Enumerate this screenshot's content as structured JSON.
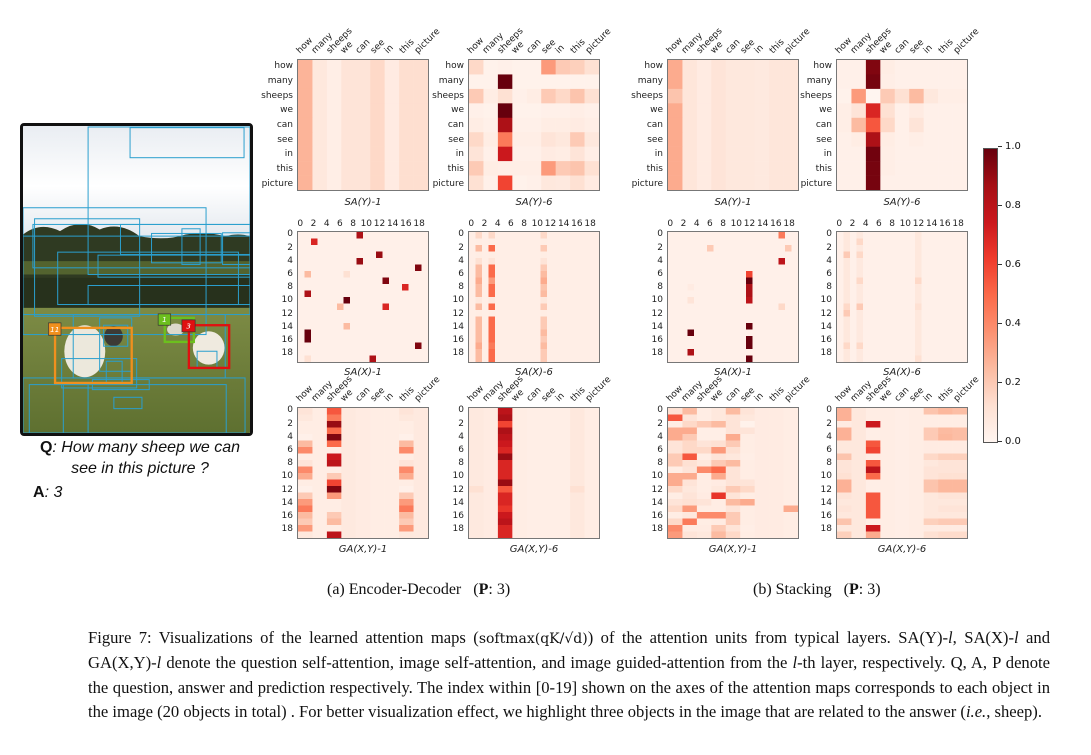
{
  "question": {
    "q_label": "Q",
    "q_line1": ": How many sheep we can",
    "q_line2": "see in this picture ?",
    "a_label": "A",
    "a_text": ": 3"
  },
  "photo": {
    "highlight_labels": [
      "11",
      "1",
      "3"
    ],
    "highlight_colors": [
      "#f0901e",
      "#6cbf1e",
      "#e01010"
    ],
    "box_color": "#2a9fce"
  },
  "axis_words": [
    "how",
    "many",
    "sheeps",
    "we",
    "can",
    "see",
    "in",
    "this",
    "picture"
  ],
  "axis_numbers": [
    "0",
    "2",
    "4",
    "6",
    "8",
    "10",
    "12",
    "14",
    "16",
    "18"
  ],
  "colorbar": {
    "colormap": "Reds",
    "range": [
      0.0,
      1.0
    ],
    "ticks": [
      "1.0",
      "0.8",
      "0.6",
      "0.4",
      "0.2",
      "0.0"
    ]
  },
  "subcaptions": {
    "a": {
      "prefix": "(a) Encoder-Decoder",
      "p_label": "P",
      "p_value": ": 3)"
    },
    "b": {
      "prefix": "(b) Stacking",
      "p_label": "P",
      "p_value": ": 3)"
    }
  },
  "caption": {
    "parts": [
      "Figure 7: Visualizations of the learned attention maps (",
      "softmax(qK/√d)",
      ") of the attention units from typical layers. SA(Y)-",
      "l",
      ", SA(X)-",
      "l",
      " and GA(X,Y)-",
      "l",
      " denote the question self-attention, image self-attention, and image guided-attention from the ",
      "l",
      "-th layer, respectively. Q, A, P denote the question, answer and prediction respectively. The index within [0-19] shown on the axes of the attention maps corresponds to each object in the image (20 objects in total) . For better visualization effect, we highlight three objects in the image that are related to the answer (",
      "i.e.",
      ", sheep)."
    ]
  },
  "chart_data": [
    {
      "type": "heatmap",
      "group": "a",
      "title": "SA(Y)-1",
      "rows": "words",
      "cols": "words",
      "n_rows": 9,
      "n_cols": 9,
      "base": 0.05,
      "columns": [
        0.27,
        0.08,
        0.04,
        0.1,
        0.1,
        0.15,
        0.06,
        0.13,
        0.13
      ],
      "cells": []
    },
    {
      "type": "heatmap",
      "group": "a",
      "title": "SA(Y)-6",
      "rows": "words",
      "cols": "words",
      "n_rows": 9,
      "n_cols": 9,
      "matrix": [
        [
          0.15,
          0.02,
          0.03,
          0.02,
          0.02,
          0.35,
          0.2,
          0.18,
          0.12
        ],
        [
          0.02,
          0.02,
          1.0,
          0.02,
          0.02,
          0.02,
          0.02,
          0.02,
          0.02
        ],
        [
          0.2,
          0.05,
          0.12,
          0.03,
          0.05,
          0.2,
          0.15,
          0.22,
          0.12
        ],
        [
          0.03,
          0.02,
          1.0,
          0.02,
          0.02,
          0.03,
          0.03,
          0.04,
          0.03
        ],
        [
          0.05,
          0.03,
          0.85,
          0.03,
          0.03,
          0.05,
          0.05,
          0.06,
          0.04
        ],
        [
          0.15,
          0.05,
          0.45,
          0.04,
          0.04,
          0.1,
          0.08,
          0.2,
          0.08
        ],
        [
          0.1,
          0.03,
          0.75,
          0.03,
          0.03,
          0.06,
          0.05,
          0.1,
          0.04
        ],
        [
          0.2,
          0.05,
          0.04,
          0.04,
          0.04,
          0.35,
          0.2,
          0.22,
          0.12
        ],
        [
          0.12,
          0.03,
          0.6,
          0.02,
          0.03,
          0.08,
          0.07,
          0.12,
          0.06
        ]
      ]
    },
    {
      "type": "heatmap",
      "group": "a",
      "title": "SA(X)-1",
      "rows": "numbers",
      "cols": "numbers",
      "n_rows": 20,
      "n_cols": 20,
      "base": 0.03,
      "columns": [],
      "cells": [
        [
          0,
          9,
          0.85
        ],
        [
          1,
          2,
          0.7
        ],
        [
          3,
          12,
          0.9
        ],
        [
          4,
          9,
          0.9
        ],
        [
          5,
          18,
          0.95
        ],
        [
          6,
          1,
          0.25
        ],
        [
          6,
          7,
          0.12
        ],
        [
          7,
          13,
          0.95
        ],
        [
          8,
          16,
          0.7
        ],
        [
          9,
          1,
          0.85
        ],
        [
          10,
          7,
          1.0
        ],
        [
          11,
          6,
          0.25
        ],
        [
          11,
          13,
          0.7
        ],
        [
          14,
          7,
          0.25
        ],
        [
          15,
          1,
          1.0
        ],
        [
          16,
          1,
          1.0
        ],
        [
          17,
          18,
          0.95
        ],
        [
          19,
          1,
          0.12
        ],
        [
          19,
          11,
          0.85
        ]
      ]
    },
    {
      "type": "heatmap",
      "group": "a",
      "title": "SA(X)-6",
      "rows": "numbers",
      "cols": "numbers",
      "n_rows": 20,
      "n_cols": 20,
      "base": 0.04,
      "columns": [
        null,
        [
          0.15,
          0.05,
          0.25,
          0.05,
          0.12,
          0.25,
          0.25,
          0.3,
          0.25,
          0.25,
          0.08,
          0.25,
          0.05,
          0.25,
          0.25,
          0.25,
          0.25,
          0.3,
          0.25,
          0.25
        ],
        null,
        [
          0.15,
          0.05,
          0.5,
          0.05,
          0.1,
          0.5,
          0.5,
          0.35,
          0.5,
          0.5,
          0.08,
          0.5,
          0.05,
          0.5,
          0.5,
          0.5,
          0.5,
          0.45,
          0.5,
          0.5
        ],
        null,
        null,
        null,
        null,
        null,
        null,
        null,
        [
          0.15,
          0.05,
          0.2,
          0.05,
          0.1,
          0.2,
          0.25,
          0.3,
          0.22,
          0.25,
          0.08,
          0.2,
          0.05,
          0.2,
          0.2,
          0.25,
          0.2,
          0.25,
          0.2,
          0.2
        ]
      ],
      "cells": []
    },
    {
      "type": "heatmap",
      "group": "a",
      "title": "GA(X,Y)-1",
      "rows": "numbers",
      "cols": "words",
      "n_rows": 20,
      "n_cols": 9,
      "base": 0.05,
      "columns": [
        [
          0.1,
          0.08,
          0.05,
          0.05,
          0.03,
          0.25,
          0.4,
          0.05,
          0.1,
          0.4,
          0.3,
          0.05,
          0.03,
          0.2,
          0.35,
          0.45,
          0.25,
          0.2,
          0.35,
          0.08
        ],
        0.05,
        [
          0.55,
          0.45,
          0.9,
          0.5,
          0.95,
          0.5,
          0.05,
          0.75,
          0.8,
          0.05,
          0.2,
          0.6,
          0.95,
          0.35,
          0.05,
          0.05,
          0.2,
          0.25,
          0.05,
          0.8
        ],
        0.07,
        0.06,
        0.05,
        0.05,
        [
          0.1,
          0.08,
          0.05,
          0.05,
          0.03,
          0.25,
          0.4,
          0.05,
          0.1,
          0.4,
          0.3,
          0.05,
          0.03,
          0.2,
          0.35,
          0.45,
          0.25,
          0.2,
          0.35,
          0.08
        ],
        0.07
      ],
      "cells": []
    },
    {
      "type": "heatmap",
      "group": "a",
      "title": "GA(X,Y)-6",
      "rows": "numbers",
      "cols": "words",
      "n_rows": 20,
      "n_cols": 9,
      "base": 0.05,
      "columns": [
        0.07,
        0.06,
        [
          0.8,
          0.85,
          0.6,
          0.85,
          0.8,
          0.75,
          0.7,
          0.9,
          0.7,
          0.7,
          0.7,
          0.9,
          0.55,
          0.7,
          0.7,
          0.65,
          0.75,
          0.8,
          0.7,
          0.7
        ],
        0.05,
        0.04,
        0.04,
        0.04,
        0.08,
        0.05
      ],
      "cells": [
        [
          12,
          0,
          0.12
        ],
        [
          12,
          7,
          0.12
        ]
      ]
    },
    {
      "type": "heatmap",
      "group": "b",
      "title": "SA(Y)-1",
      "rows": "words",
      "cols": "words",
      "n_rows": 9,
      "n_cols": 9,
      "base": 0.05,
      "columns": [
        0.3,
        0.09,
        0.06,
        0.1,
        0.08,
        0.08,
        0.07,
        0.09,
        0.09
      ],
      "cells": [
        [
          2,
          0,
          0.22
        ]
      ]
    },
    {
      "type": "heatmap",
      "group": "b",
      "title": "SA(Y)-6",
      "rows": "words",
      "cols": "words",
      "n_rows": 9,
      "n_cols": 9,
      "matrix": [
        [
          0.03,
          0.03,
          0.95,
          0.05,
          0.03,
          0.03,
          0.03,
          0.03,
          0.03
        ],
        [
          0.03,
          0.03,
          0.97,
          0.04,
          0.03,
          0.03,
          0.03,
          0.03,
          0.03
        ],
        [
          0.02,
          0.35,
          0.0,
          0.2,
          0.12,
          0.25,
          0.08,
          0.04,
          0.04
        ],
        [
          0.04,
          0.1,
          0.7,
          0.12,
          0.03,
          0.06,
          0.03,
          0.03,
          0.03
        ],
        [
          0.04,
          0.25,
          0.55,
          0.15,
          0.03,
          0.1,
          0.03,
          0.03,
          0.03
        ],
        [
          0.03,
          0.05,
          0.85,
          0.05,
          0.03,
          0.04,
          0.03,
          0.03,
          0.03
        ],
        [
          0.03,
          0.03,
          0.98,
          0.04,
          0.03,
          0.03,
          0.03,
          0.03,
          0.03
        ],
        [
          0.03,
          0.03,
          0.97,
          0.04,
          0.03,
          0.03,
          0.03,
          0.03,
          0.03
        ],
        [
          0.03,
          0.03,
          0.97,
          0.03,
          0.03,
          0.03,
          0.03,
          0.03,
          0.03
        ]
      ]
    },
    {
      "type": "heatmap",
      "group": "b",
      "title": "SA(X)-1",
      "rows": "numbers",
      "cols": "numbers",
      "n_rows": 20,
      "n_cols": 20,
      "base": 0.03,
      "columns": [],
      "cells": [
        [
          0,
          17,
          0.45
        ],
        [
          2,
          6,
          0.2
        ],
        [
          2,
          18,
          0.2
        ],
        [
          4,
          17,
          0.8
        ],
        [
          6,
          12,
          0.6
        ],
        [
          7,
          12,
          1.0
        ],
        [
          8,
          12,
          0.85
        ],
        [
          9,
          12,
          0.85
        ],
        [
          10,
          12,
          0.8
        ],
        [
          8,
          3,
          0.06
        ],
        [
          10,
          3,
          0.1
        ],
        [
          11,
          17,
          0.15
        ],
        [
          14,
          12,
          1.0
        ],
        [
          15,
          3,
          1.0
        ],
        [
          16,
          12,
          1.0
        ],
        [
          17,
          12,
          1.0
        ],
        [
          18,
          3,
          0.85
        ],
        [
          19,
          12,
          1.0
        ]
      ]
    },
    {
      "type": "heatmap",
      "group": "b",
      "title": "SA(X)-6",
      "rows": "numbers",
      "cols": "numbers",
      "n_rows": 20,
      "n_cols": 20,
      "base": 0.03,
      "columns": [
        null,
        0.08,
        null,
        0.07,
        null,
        null,
        null,
        null,
        null,
        null,
        null,
        null,
        0.08
      ],
      "cells": [
        [
          3,
          1,
          0.2
        ],
        [
          1,
          3,
          0.15
        ],
        [
          3,
          3,
          0.15
        ],
        [
          7,
          3,
          0.15
        ],
        [
          11,
          3,
          0.2
        ],
        [
          12,
          1,
          0.2
        ],
        [
          11,
          1,
          0.15
        ],
        [
          17,
          1,
          0.15
        ],
        [
          17,
          3,
          0.15
        ],
        [
          7,
          12,
          0.15
        ],
        [
          11,
          12,
          0.12
        ],
        [
          19,
          12,
          0.12
        ]
      ]
    },
    {
      "type": "heatmap",
      "group": "b",
      "title": "GA(X,Y)-1",
      "rows": "numbers",
      "cols": "words",
      "n_rows": 20,
      "n_cols": 9,
      "base": 0.05,
      "columns": [
        [
          0.12,
          0.55,
          0.05,
          0.3,
          0.3,
          0.1,
          0.1,
          0.2,
          0.2,
          0.05,
          0.3,
          0.3,
          0.15,
          0.05,
          0.1,
          0.15,
          0.05,
          0.15,
          0.4,
          0.35
        ],
        [
          0.25,
          0.1,
          0.15,
          0.3,
          0.2,
          0.15,
          0.15,
          0.55,
          0.12,
          0.1,
          0.3,
          0.1,
          0.08,
          0.1,
          0.12,
          0.35,
          0.08,
          0.45,
          0.06,
          0.1
        ],
        [
          0.05,
          0.05,
          0.2,
          0.04,
          0.04,
          0.1,
          0.15,
          0.05,
          0.08,
          0.4,
          0.05,
          0.05,
          0.05,
          0.06,
          0.1,
          0.05,
          0.4,
          0.05,
          0.06,
          0.08
        ],
        [
          0.08,
          0.08,
          0.25,
          0.04,
          0.04,
          0.12,
          0.35,
          0.1,
          0.2,
          0.5,
          0.3,
          0.06,
          0.08,
          0.65,
          0.05,
          0.05,
          0.4,
          0.06,
          0.2,
          0.25
        ],
        [
          0.25,
          0.1,
          0.1,
          0.1,
          0.3,
          0.2,
          0.12,
          0.08,
          0.25,
          0.1,
          0.1,
          0.1,
          0.2,
          0.1,
          0.25,
          0.1,
          0.2,
          0.2,
          0.1,
          0.15
        ],
        [
          0.1,
          0.08,
          0.02,
          0.1,
          0.05,
          0.05,
          0.05,
          0.04,
          0.05,
          0.05,
          0.05,
          0.1,
          0.15,
          0.05,
          0.3,
          0.05,
          0.05,
          0.05,
          0.04,
          0.05
        ],
        0.06,
        0.06,
        0.05
      ],
      "cells": [
        [
          15,
          8,
          0.3
        ]
      ]
    },
    {
      "type": "heatmap",
      "group": "b",
      "title": "GA(X,Y)-6",
      "rows": "numbers",
      "cols": "words",
      "n_rows": 20,
      "n_cols": 9,
      "base": 0.05,
      "columns": [
        [
          0.28,
          0.28,
          0.06,
          0.28,
          0.28,
          0.08,
          0.08,
          0.22,
          0.1,
          0.1,
          0.12,
          0.28,
          0.28,
          0.1,
          0.08,
          0.1,
          0.08,
          0.22,
          0.08,
          0.18
        ],
        0.08,
        [
          0.05,
          0.05,
          0.75,
          0.04,
          0.04,
          0.55,
          0.6,
          0.06,
          0.55,
          0.8,
          0.5,
          0.04,
          0.04,
          0.55,
          0.55,
          0.55,
          0.55,
          0.05,
          0.75,
          0.3
        ],
        0.05,
        0.04,
        0.05,
        [
          0.22,
          0.05,
          0.05,
          0.2,
          0.2,
          0.06,
          0.06,
          0.15,
          0.08,
          0.1,
          0.1,
          0.22,
          0.22,
          0.08,
          0.08,
          0.08,
          0.08,
          0.18,
          0.06,
          0.12
        ],
        [
          0.26,
          0.05,
          0.05,
          0.25,
          0.26,
          0.06,
          0.06,
          0.18,
          0.1,
          0.1,
          0.12,
          0.26,
          0.26,
          0.1,
          0.08,
          0.1,
          0.08,
          0.2,
          0.06,
          0.14
        ],
        [
          0.24,
          0.05,
          0.05,
          0.24,
          0.24,
          0.06,
          0.06,
          0.18,
          0.1,
          0.1,
          0.12,
          0.26,
          0.26,
          0.1,
          0.08,
          0.1,
          0.08,
          0.2,
          0.06,
          0.14
        ]
      ],
      "cells": []
    }
  ]
}
